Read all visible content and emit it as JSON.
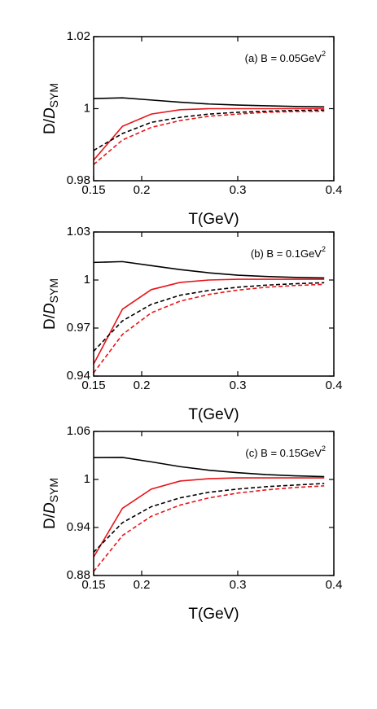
{
  "chart_data": [
    {
      "type": "line",
      "annotation": "(a) B = 0.05GeV",
      "annotation_sup": "2",
      "xlabel": "T(GeV)",
      "ylabel": [
        "D/",
        "D",
        "SYM"
      ],
      "x": [
        0.15,
        0.18,
        0.21,
        0.24,
        0.27,
        0.3,
        0.33,
        0.36,
        0.39
      ],
      "xlim": [
        0.15,
        0.4
      ],
      "xticks": [
        0.15,
        0.2,
        0.3,
        0.4
      ],
      "ylim": [
        0.98,
        1.02
      ],
      "yticks": [
        0.98,
        1,
        1.02
      ],
      "series": [
        {
          "color": "#000000",
          "style": "solid",
          "values": [
            1.0028,
            1.003,
            1.0024,
            1.0018,
            1.0013,
            1.001,
            1.0008,
            1.0006,
            1.0005
          ]
        },
        {
          "color": "#e8141a",
          "style": "solid",
          "values": [
            0.9857,
            0.9951,
            0.9985,
            0.9997,
            1.0,
            1.0,
            1.0,
            1.0,
            1.0
          ]
        },
        {
          "color": "#000000",
          "style": "dashed",
          "values": [
            0.9884,
            0.9931,
            0.9962,
            0.9976,
            0.9985,
            0.999,
            0.9993,
            0.9995,
            0.9996
          ]
        },
        {
          "color": "#e8141a",
          "style": "dashed",
          "values": [
            0.9845,
            0.9913,
            0.9948,
            0.9967,
            0.9979,
            0.9985,
            0.999,
            0.9992,
            0.9993
          ]
        }
      ]
    },
    {
      "type": "line",
      "annotation": "(b) B = 0.1GeV",
      "annotation_sup": "2",
      "xlabel": "T(GeV)",
      "ylabel": [
        "D/",
        "D",
        "SYM"
      ],
      "x": [
        0.15,
        0.18,
        0.21,
        0.24,
        0.27,
        0.3,
        0.33,
        0.36,
        0.39
      ],
      "xlim": [
        0.15,
        0.4
      ],
      "xticks": [
        0.15,
        0.2,
        0.3,
        0.4
      ],
      "ylim": [
        0.94,
        1.03
      ],
      "yticks": [
        0.94,
        0.97,
        1,
        1.03
      ],
      "series": [
        {
          "color": "#000000",
          "style": "solid",
          "values": [
            1.011,
            1.0115,
            1.009,
            1.0065,
            1.0045,
            1.003,
            1.0022,
            1.0016,
            1.0013
          ]
        },
        {
          "color": "#e8141a",
          "style": "solid",
          "values": [
            0.9475,
            0.9818,
            0.994,
            0.9985,
            1.0,
            1.0005,
            1.0005,
            1.0005,
            1.0005
          ]
        },
        {
          "color": "#000000",
          "style": "dashed",
          "values": [
            0.9555,
            0.9745,
            0.9848,
            0.9905,
            0.9935,
            0.9955,
            0.9968,
            0.9977,
            0.9983
          ]
        },
        {
          "color": "#e8141a",
          "style": "dashed",
          "values": [
            0.942,
            0.966,
            0.9795,
            0.9868,
            0.991,
            0.9937,
            0.9955,
            0.9966,
            0.9973
          ]
        }
      ]
    },
    {
      "type": "line",
      "annotation": "(c) B = 0.15GeV",
      "annotation_sup": "2",
      "xlabel": "T(GeV)",
      "ylabel": [
        "D/",
        "D",
        "SYM"
      ],
      "x": [
        0.15,
        0.18,
        0.21,
        0.24,
        0.27,
        0.3,
        0.33,
        0.36,
        0.39
      ],
      "xlim": [
        0.15,
        0.4
      ],
      "xticks": [
        0.15,
        0.2,
        0.3,
        0.4
      ],
      "ylim": [
        0.88,
        1.06
      ],
      "yticks": [
        0.88,
        0.94,
        1,
        1.06
      ],
      "series": [
        {
          "color": "#000000",
          "style": "solid",
          "values": [
            1.0273,
            1.0275,
            1.022,
            1.016,
            1.0115,
            1.0085,
            1.006,
            1.0045,
            1.0035
          ]
        },
        {
          "color": "#e8141a",
          "style": "solid",
          "values": [
            0.903,
            0.964,
            0.988,
            0.998,
            1.001,
            1.002,
            1.002,
            1.002,
            1.002
          ]
        },
        {
          "color": "#000000",
          "style": "dashed",
          "values": [
            0.909,
            0.946,
            0.966,
            0.977,
            0.984,
            0.988,
            0.991,
            0.993,
            0.995
          ]
        },
        {
          "color": "#e8141a",
          "style": "dashed",
          "values": [
            0.885,
            0.93,
            0.954,
            0.968,
            0.977,
            0.983,
            0.987,
            0.99,
            0.992
          ]
        }
      ]
    }
  ]
}
